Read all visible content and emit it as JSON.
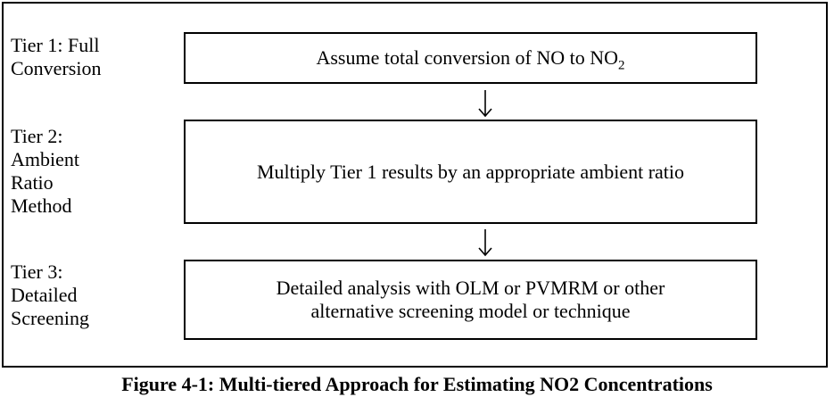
{
  "tiers": [
    {
      "label_lines": [
        "Tier 1: Full",
        "Conversion"
      ],
      "box_text_main": "Assume total conversion of NO to NO",
      "box_text_sub": "2"
    },
    {
      "label_lines": [
        "Tier 2:",
        "Ambient",
        "Ratio",
        "Method"
      ],
      "box_text_main": "Multiply Tier 1 results by an appropriate ambient ratio"
    },
    {
      "label_lines": [
        "Tier 3:",
        "Detailed",
        "Screening"
      ],
      "box_lines": [
        "Detailed analysis with OLM or PVMRM or other",
        "alternative screening model or technique"
      ]
    }
  ],
  "caption": "Figure 4-1: Multi-tiered Approach for Estimating NO2 Concentrations"
}
